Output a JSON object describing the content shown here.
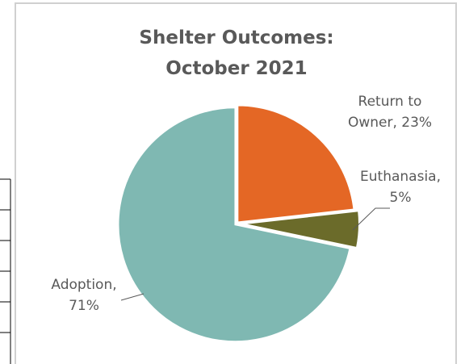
{
  "chart_data": {
    "type": "pie",
    "title": "Shelter Outcomes: October 2021",
    "categories": [
      "Return to Owner",
      "Euthanasia",
      "Adoption"
    ],
    "values": [
      23,
      5,
      71
    ],
    "value_labels": [
      "Return to Owner, 23%",
      "Euthanasia, 5%",
      "Adoption, 71%"
    ],
    "colors": [
      "#e46725",
      "#6b6b2a",
      "#7fb8b2"
    ]
  }
}
